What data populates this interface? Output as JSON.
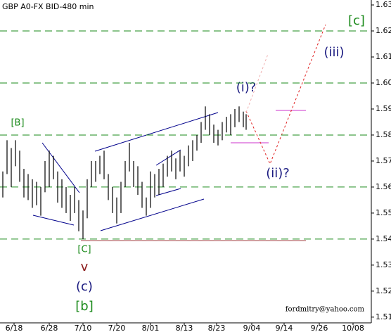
{
  "chart_data": {
    "type": "hilo",
    "title": "GBP A0-FX BID-480 min",
    "x": [
      2,
      5,
      8,
      11,
      14,
      17,
      20,
      23,
      26,
      29,
      32,
      35,
      38,
      41,
      44,
      47,
      50,
      53,
      56,
      59,
      62,
      65,
      68,
      71,
      74,
      77,
      80,
      83,
      86,
      89,
      92,
      95,
      98,
      101,
      104,
      107,
      110,
      113,
      116,
      119,
      122,
      125,
      128,
      131,
      134,
      137,
      140,
      143,
      146,
      149,
      152,
      155,
      158,
      161,
      164,
      167,
      170,
      173,
      175
    ],
    "series": [
      {
        "name": "high",
        "color": "#000000",
        "values": [
          1.566,
          1.578,
          1.575,
          1.578,
          1.574,
          1.567,
          1.565,
          1.563,
          1.562,
          1.56,
          1.57,
          1.574,
          1.572,
          1.566,
          1.563,
          1.56,
          1.557,
          1.56,
          1.555,
          1.551,
          1.563,
          1.57,
          1.57,
          1.572,
          1.574,
          1.565,
          1.56,
          1.556,
          1.562,
          1.57,
          1.577,
          1.57,
          1.568,
          1.562,
          1.556,
          1.566,
          1.565,
          1.567,
          1.569,
          1.572,
          1.574,
          1.571,
          1.574,
          1.572,
          1.576,
          1.578,
          1.58,
          1.585,
          1.591,
          1.588,
          1.584,
          1.582,
          1.585,
          1.587,
          1.588,
          1.59,
          1.591,
          1.589,
          1.588
        ]
      },
      {
        "name": "low",
        "color": "#000000",
        "values": [
          1.556,
          1.565,
          1.56,
          1.568,
          1.562,
          1.556,
          1.555,
          1.552,
          1.553,
          1.549,
          1.558,
          1.56,
          1.563,
          1.554,
          1.552,
          1.55,
          1.547,
          1.55,
          1.543,
          1.54,
          1.548,
          1.56,
          1.562,
          1.565,
          1.563,
          1.555,
          1.55,
          1.546,
          1.55,
          1.56,
          1.566,
          1.56,
          1.557,
          1.552,
          1.549,
          1.552,
          1.556,
          1.557,
          1.56,
          1.564,
          1.566,
          1.563,
          1.566,
          1.564,
          1.568,
          1.57,
          1.574,
          1.577,
          1.582,
          1.58,
          1.577,
          1.576,
          1.578,
          1.581,
          1.58,
          1.583,
          1.585,
          1.583,
          1.582
        ]
      }
    ],
    "xlim": [
      0,
      264
    ],
    "xticks": [
      {
        "value": 10,
        "label": "6/18"
      },
      {
        "value": 35,
        "label": "6/28"
      },
      {
        "value": 59,
        "label": "7/10"
      },
      {
        "value": 83,
        "label": "7/20"
      },
      {
        "value": 107,
        "label": "8/01"
      },
      {
        "value": 131,
        "label": "8/13"
      },
      {
        "value": 154,
        "label": "8/23"
      },
      {
        "value": 179,
        "label": "9/04"
      },
      {
        "value": 202,
        "label": "9/14"
      },
      {
        "value": 227,
        "label": "9/26"
      },
      {
        "value": 251,
        "label": "10/08"
      }
    ],
    "ylim": [
      1.5078,
      1.6319
    ],
    "yticks": [
      1.51,
      1.52,
      1.53,
      1.54,
      1.55,
      1.56,
      1.57,
      1.58,
      1.59,
      {
        "value": 1.6,
        "label": "1.60"
      },
      1.61,
      1.62,
      1.63
    ],
    "levels": [
      1.54,
      1.56,
      1.58,
      1.6,
      1.62
    ],
    "level_color": "#1a8a1a",
    "annotations": [
      "[c]",
      "(iii)",
      "(i)?",
      "(ii)?",
      "[B]",
      "[C]",
      "v",
      "(c)",
      "[b]"
    ],
    "credit": "fordmitry@yahoo.com"
  }
}
